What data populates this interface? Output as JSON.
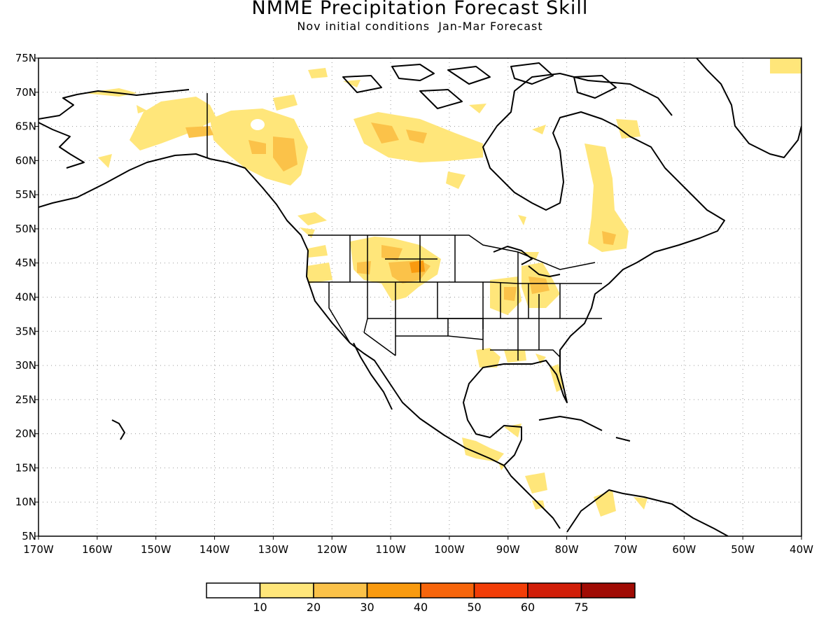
{
  "title": "NMME Precipitation Forecast Skill",
  "subtitle": "Nov initial conditions  Jan-Mar Forecast",
  "map": {
    "lon_range": [
      -170,
      -40
    ],
    "lat_range": [
      5,
      75
    ],
    "lon_labels": [
      "170W",
      "160W",
      "150W",
      "140W",
      "130W",
      "120W",
      "110W",
      "100W",
      "90W",
      "80W",
      "70W",
      "60W",
      "50W",
      "40W"
    ],
    "lat_labels": [
      "5N",
      "10N",
      "15N",
      "20N",
      "25N",
      "30N",
      "35N",
      "40N",
      "45N",
      "50N",
      "55N",
      "60N",
      "65N",
      "70N",
      "75N"
    ],
    "gridlines": "dotted"
  },
  "legend": {
    "labels": [
      "10",
      "20",
      "30",
      "40",
      "50",
      "60",
      "75"
    ],
    "colors": [
      "#ffffff",
      "#ffe67a",
      "#fbc249",
      "#f99a0f",
      "#f7650b",
      "#f23d07",
      "#d11e08",
      "#a00b04"
    ]
  }
}
